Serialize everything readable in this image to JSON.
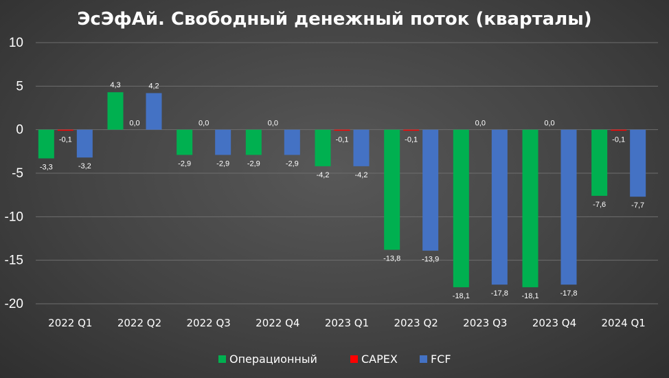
{
  "chart_data": {
    "type": "bar",
    "title": "ЭсЭфАй. Свободный денежный поток (кварталы)",
    "categories": [
      "2022 Q1",
      "2022 Q2",
      "2022 Q3",
      "2022 Q4",
      "2023 Q1",
      "2023 Q2",
      "2023 Q3",
      "2023 Q4",
      "2024 Q1"
    ],
    "series": [
      {
        "name": "Операционный",
        "color": "#00b050",
        "values": [
          -3.3,
          4.3,
          -2.9,
          -2.9,
          -4.2,
          -13.8,
          -18.1,
          -18.1,
          -7.6
        ],
        "labels": [
          "-3,3",
          "4,3",
          "-2,9",
          "-2,9",
          "-4,2",
          "-13,8",
          "-18,1",
          "-18,1",
          "-7,6"
        ]
      },
      {
        "name": "CAPEX",
        "color": "#ff0000",
        "values": [
          -0.1,
          0.0,
          0.0,
          0.0,
          -0.1,
          -0.1,
          0.0,
          0.0,
          -0.1
        ],
        "labels": [
          "-0,1",
          "0,0",
          "0,0",
          "0,0",
          "-0,1",
          "-0,1",
          "0,0",
          "0,0",
          "-0,1"
        ]
      },
      {
        "name": "FCF",
        "color": "#4472c4",
        "values": [
          -3.2,
          4.2,
          -2.9,
          -2.9,
          -4.2,
          -13.9,
          -17.8,
          -17.8,
          -7.7
        ],
        "labels": [
          "-3,2",
          "4,2",
          "-2,9",
          "-2,9",
          "-4,2",
          "-13,9",
          "-17,8",
          "-17,8",
          "-7,7"
        ]
      }
    ],
    "ylim": [
      -20,
      10
    ],
    "yticks": [
      10,
      5,
      0,
      -5,
      -10,
      -15,
      -20
    ],
    "ytick_labels": [
      "10",
      "5",
      "0",
      "-5",
      "-10",
      "-15",
      "-20"
    ],
    "xlabel": "",
    "ylabel": "",
    "grid": true,
    "legend_position": "bottom"
  }
}
